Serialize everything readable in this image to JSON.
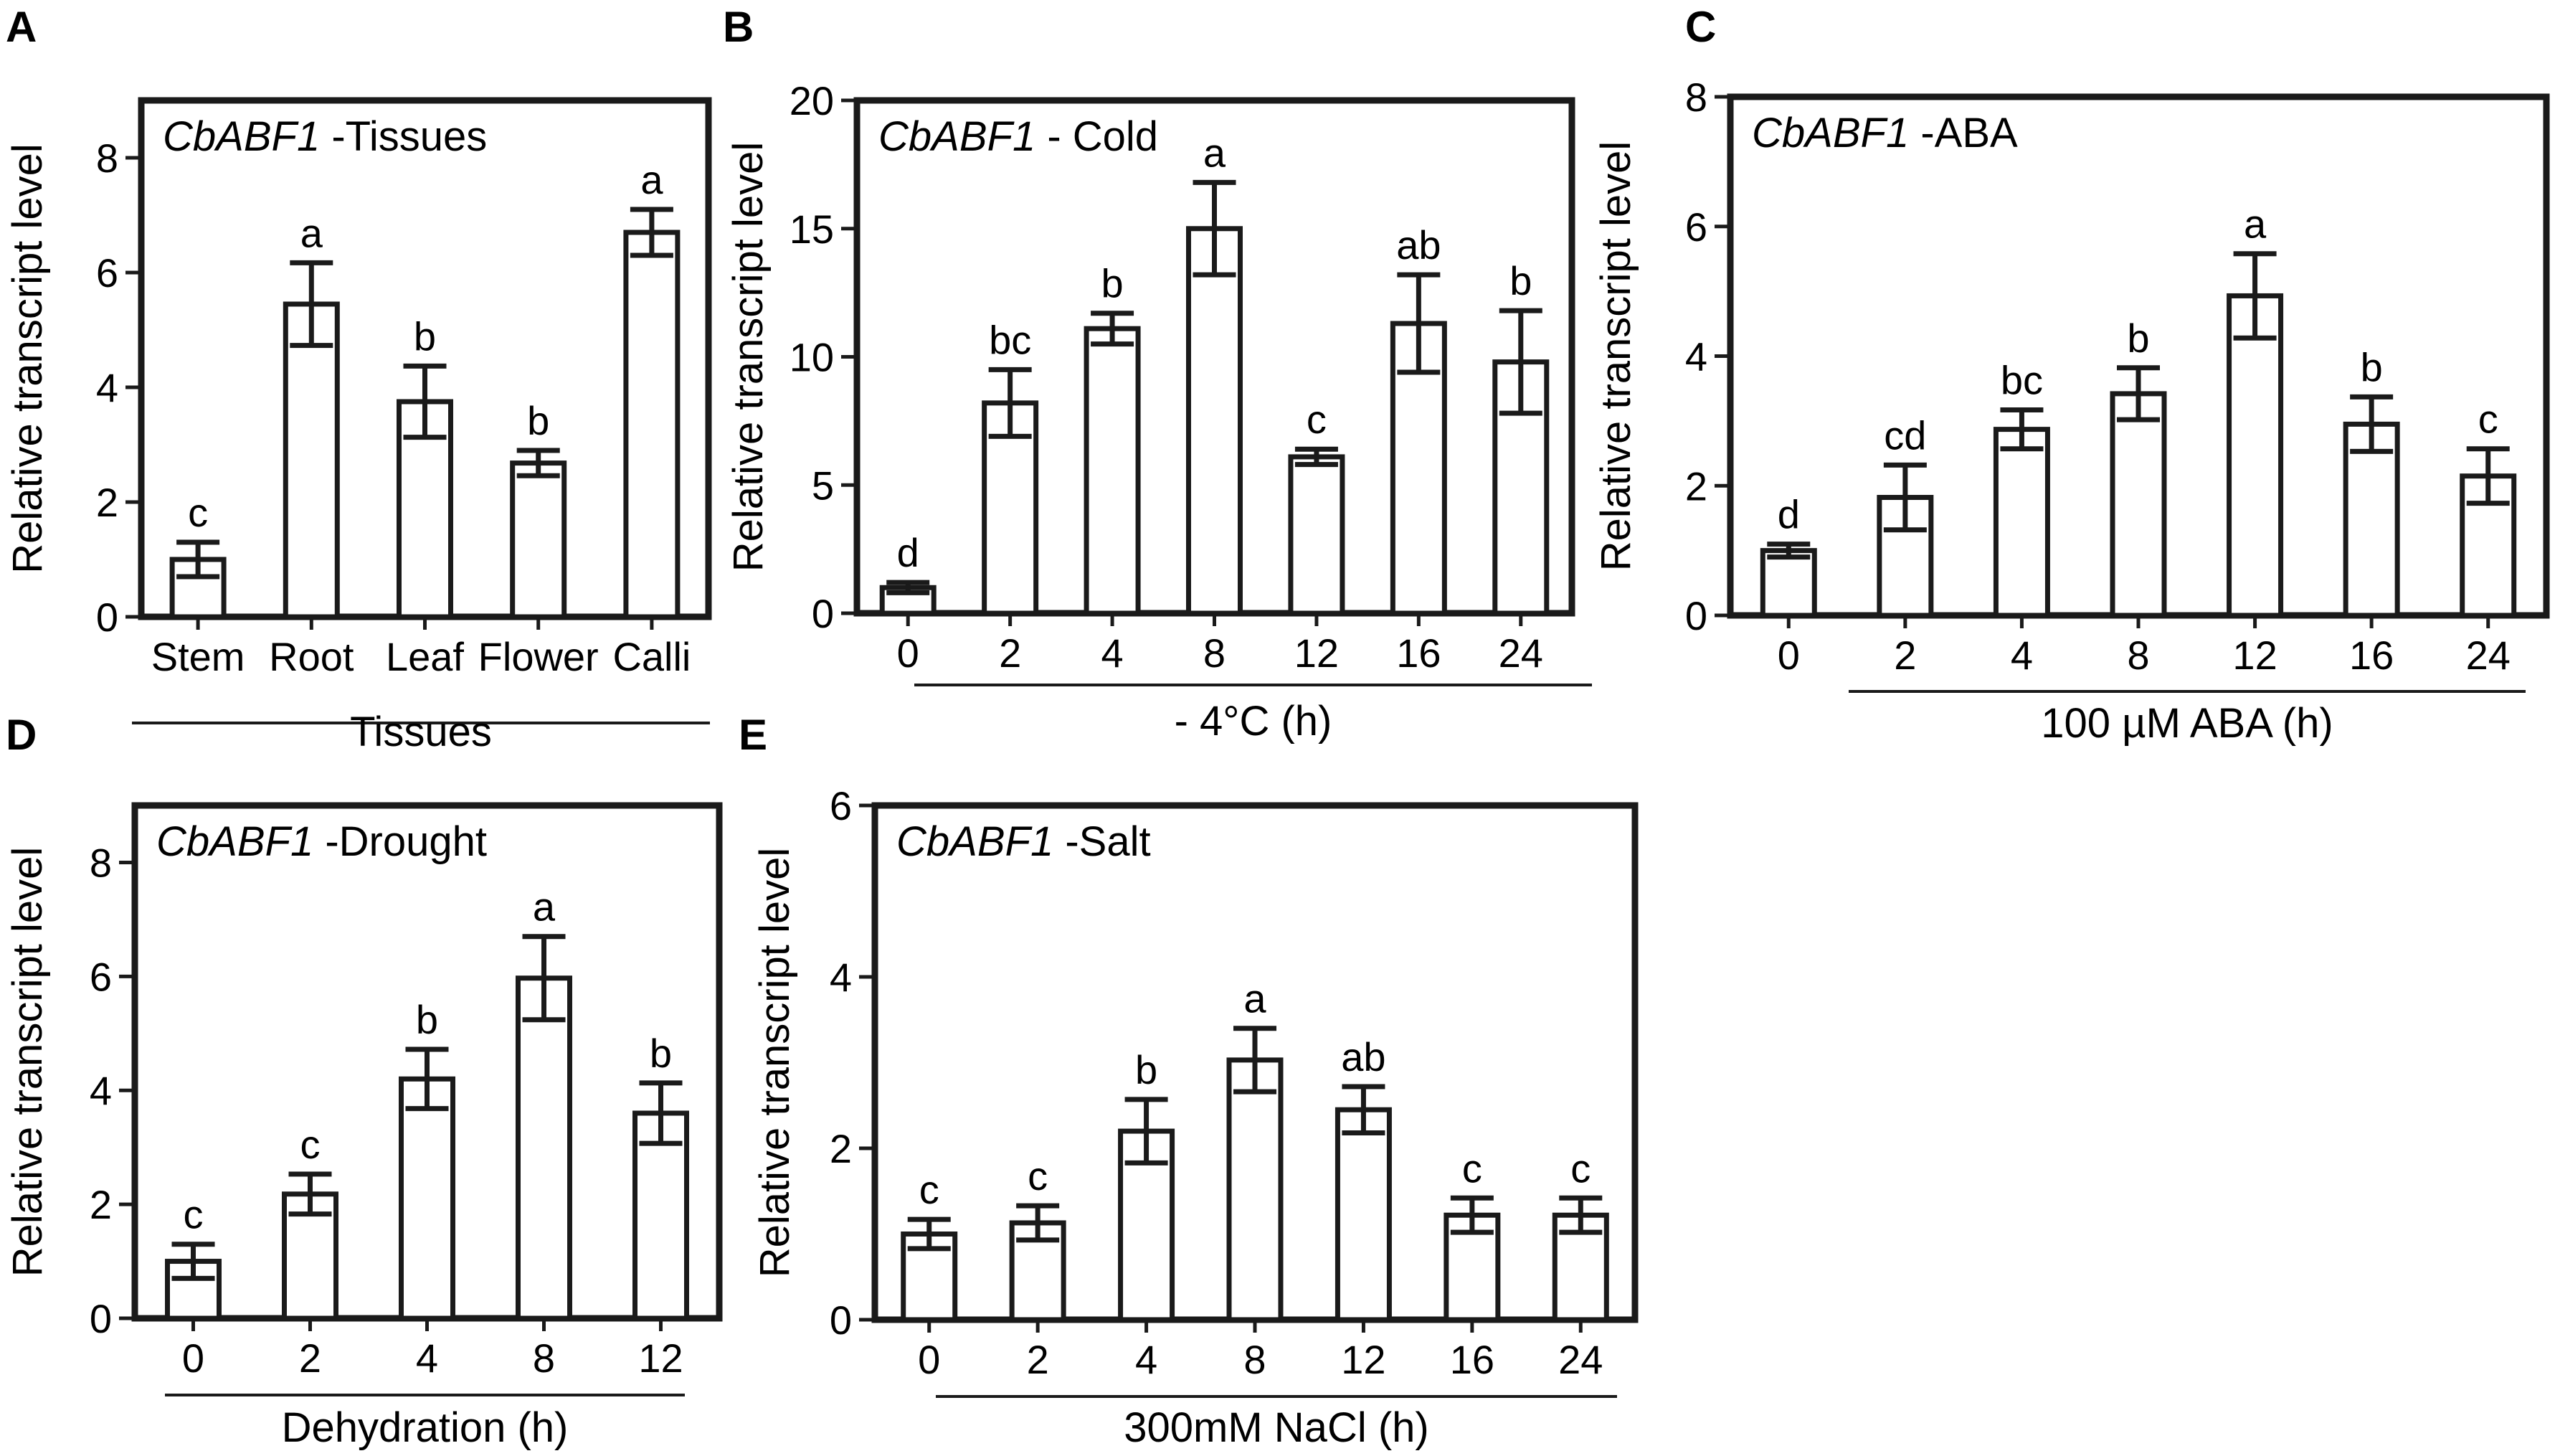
{
  "chart_data": [
    {
      "panel": "A",
      "type": "bar",
      "title_gene": "CbABF1",
      "title_suffix": " -Tissues",
      "ylabel": "Relative transcript level",
      "xlabel": "Tissues",
      "ylim": [
        0,
        9
      ],
      "yticks": [
        0,
        2,
        4,
        6,
        8
      ],
      "categories": [
        "Stem",
        "Root",
        "Leaf",
        "Flower",
        "Calli"
      ],
      "values": [
        1.0,
        5.45,
        3.75,
        2.68,
        6.7
      ],
      "errors": [
        0.3,
        0.72,
        0.62,
        0.22,
        0.4
      ],
      "significance": [
        "c",
        "a",
        "b",
        "b",
        "a"
      ]
    },
    {
      "panel": "B",
      "type": "bar",
      "title_gene": "CbABF1",
      "title_suffix": " - Cold",
      "ylabel": "Relative transcript level",
      "xlabel": "- 4°C (h)",
      "ylim": [
        0,
        20
      ],
      "yticks": [
        0,
        5,
        10,
        15,
        20
      ],
      "categories": [
        "0",
        "2",
        "4",
        "8",
        "12",
        "16",
        "24"
      ],
      "values": [
        1.0,
        8.2,
        11.1,
        15.0,
        6.1,
        11.3,
        9.8
      ],
      "errors": [
        0.2,
        1.3,
        0.6,
        1.8,
        0.3,
        1.9,
        2.0
      ],
      "significance": [
        "d",
        "bc",
        "b",
        "a",
        "c",
        "ab",
        "b"
      ]
    },
    {
      "panel": "C",
      "type": "bar",
      "title_gene": "CbABF1",
      "title_suffix": " -ABA",
      "ylabel": "Relative transcript level",
      "xlabel": "100 µM ABA (h)",
      "ylim": [
        0,
        8
      ],
      "yticks": [
        0,
        2,
        4,
        6,
        8
      ],
      "categories": [
        "0",
        "2",
        "4",
        "8",
        "12",
        "16",
        "24"
      ],
      "values": [
        1.0,
        1.82,
        2.87,
        3.42,
        4.93,
        2.95,
        2.15
      ],
      "errors": [
        0.1,
        0.5,
        0.3,
        0.4,
        0.65,
        0.42,
        0.42
      ],
      "significance": [
        "d",
        "cd",
        "bc",
        "b",
        "a",
        "b",
        "c"
      ]
    },
    {
      "panel": "D",
      "type": "bar",
      "title_gene": "CbABF1",
      "title_suffix": " -Drought",
      "ylabel": "Relative transcript level",
      "xlabel": "Dehydration  (h)",
      "ylim": [
        0,
        9
      ],
      "yticks": [
        0,
        2,
        4,
        6,
        8
      ],
      "categories": [
        "0",
        "2",
        "4",
        "8",
        "12"
      ],
      "values": [
        1.0,
        2.18,
        4.2,
        5.97,
        3.6
      ],
      "errors": [
        0.3,
        0.35,
        0.52,
        0.73,
        0.53
      ],
      "significance": [
        "c",
        "c",
        "b",
        "a",
        "b"
      ]
    },
    {
      "panel": "E",
      "type": "bar",
      "title_gene": "CbABF1",
      "title_suffix": " -Salt",
      "ylabel": "Relative transcript level",
      "xlabel": "300mM NaCl (h)",
      "ylim": [
        0,
        6
      ],
      "yticks": [
        0,
        2,
        4,
        6
      ],
      "categories": [
        "0",
        "2",
        "4",
        "8",
        "12",
        "16",
        "24"
      ],
      "values": [
        1.0,
        1.13,
        2.2,
        3.03,
        2.45,
        1.22,
        1.22
      ],
      "errors": [
        0.17,
        0.2,
        0.37,
        0.37,
        0.27,
        0.2,
        0.2
      ],
      "significance": [
        "c",
        "c",
        "b",
        "a",
        "ab",
        "c",
        "c"
      ]
    }
  ]
}
